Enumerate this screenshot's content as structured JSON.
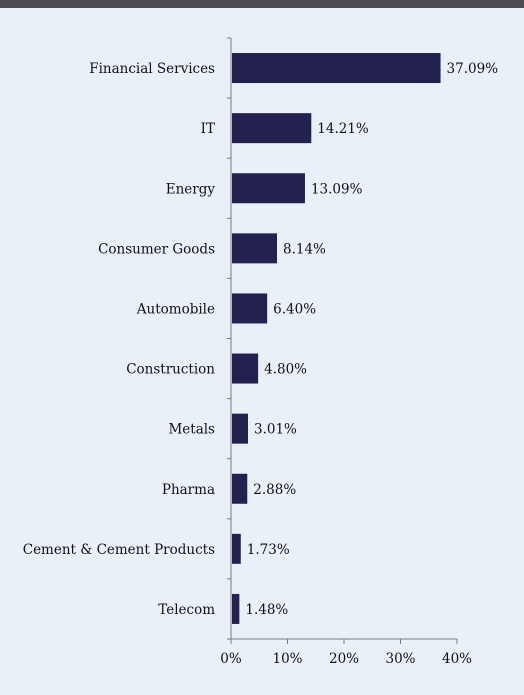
{
  "colors": {
    "bar": "#22214f",
    "header_band": "#4d4d53",
    "background": "#eaf0f8"
  },
  "chart_data": {
    "type": "bar",
    "orientation": "horizontal",
    "categories": [
      "Financial Services",
      "IT",
      "Energy",
      "Consumer Goods",
      "Automobile",
      "Construction",
      "Metals",
      "Pharma",
      "Cement & Cement Products",
      "Telecom"
    ],
    "values": [
      37.09,
      14.21,
      13.09,
      8.14,
      6.4,
      4.8,
      3.01,
      2.88,
      1.73,
      1.48
    ],
    "value_labels": [
      "37.09%",
      "14.21%",
      "13.09%",
      "8.14%",
      "6.40%",
      "4.80%",
      "3.01%",
      "2.88%",
      "1.73%",
      "1.48%"
    ],
    "xlim": [
      0,
      40
    ],
    "xticks": [
      0,
      10,
      20,
      30,
      40
    ],
    "xtick_labels": [
      "0%",
      "10%",
      "20%",
      "30%",
      "40%"
    ],
    "grid": false,
    "legend": "none"
  }
}
